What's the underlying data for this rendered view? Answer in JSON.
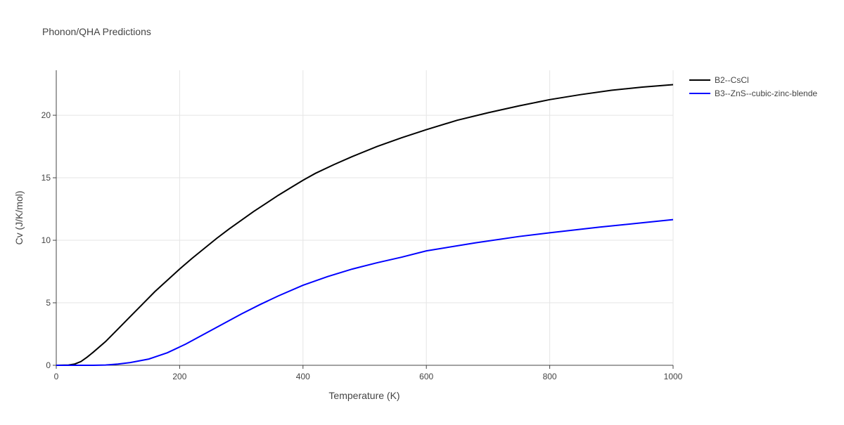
{
  "chart_data": {
    "type": "line",
    "title": "Phonon/QHA Predictions",
    "x_label": "Temperature (K)",
    "y_label": "Cv (J/K/mol)",
    "xlim": [
      0,
      1000
    ],
    "ylim": [
      0,
      23.6
    ],
    "xticks": [
      0,
      200,
      400,
      600,
      800,
      1000
    ],
    "yticks": [
      0,
      5,
      10,
      15,
      20
    ],
    "grid": true,
    "legend": "right",
    "series": [
      {
        "name": "B2--CsCl",
        "color": "#000000",
        "x": [
          0,
          20,
          30,
          40,
          50,
          60,
          80,
          100,
          120,
          140,
          160,
          180,
          200,
          220,
          240,
          260,
          280,
          300,
          320,
          340,
          360,
          380,
          400,
          420,
          450,
          480,
          520,
          560,
          600,
          650,
          700,
          750,
          800,
          850,
          900,
          950,
          1000
        ],
        "values": [
          0,
          0.02,
          0.1,
          0.3,
          0.65,
          1.05,
          1.9,
          2.9,
          3.9,
          4.9,
          5.9,
          6.8,
          7.7,
          8.55,
          9.35,
          10.15,
          10.9,
          11.6,
          12.3,
          12.95,
          13.6,
          14.2,
          14.8,
          15.35,
          16.05,
          16.7,
          17.5,
          18.2,
          18.85,
          19.6,
          20.2,
          20.75,
          21.25,
          21.65,
          22.0,
          22.25,
          22.45
        ]
      },
      {
        "name": "B3--ZnS--cubic-zinc-blende",
        "color": "#0000ff",
        "x": [
          0,
          60,
          80,
          100,
          120,
          150,
          180,
          210,
          240,
          270,
          300,
          330,
          360,
          400,
          440,
          480,
          520,
          560,
          600,
          680,
          750,
          800,
          880,
          950,
          1000
        ],
        "values": [
          0,
          0,
          0.02,
          0.1,
          0.22,
          0.5,
          1.0,
          1.7,
          2.5,
          3.3,
          4.1,
          4.85,
          5.55,
          6.4,
          7.1,
          7.7,
          8.2,
          8.65,
          9.15,
          9.8,
          10.3,
          10.6,
          11.05,
          11.4,
          11.65
        ]
      }
    ]
  }
}
